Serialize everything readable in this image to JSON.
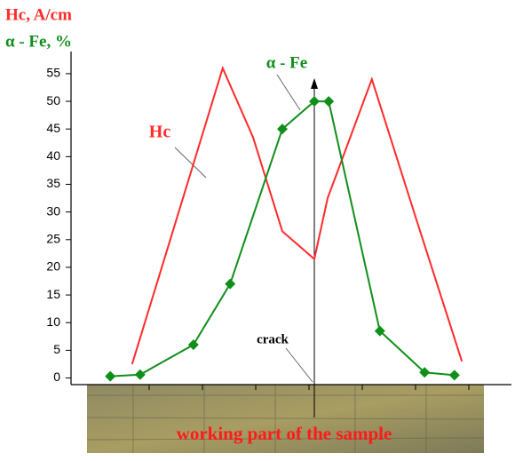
{
  "chart_data": {
    "type": "line",
    "ylabel_lines": [
      "Hc, A/cm",
      "α - Fe, %"
    ],
    "series": [
      {
        "name": "Hc",
        "color": "#ff2a2a",
        "marker": "none",
        "x": [
          0.68,
          1.38,
          2.38,
          2.95,
          3.5,
          4.1,
          4.35,
          5.18,
          6.02,
          6.87
        ],
        "values": [
          2.5,
          24.5,
          56,
          43.5,
          26.5,
          21.5,
          32.5,
          54,
          28.5,
          3
        ]
      },
      {
        "name": "α - Fe",
        "color": "#0f8f1a",
        "marker": "diamond",
        "x": [
          0.27,
          0.83,
          1.83,
          2.52,
          3.5,
          4.1,
          4.37,
          5.33,
          6.17,
          6.73
        ],
        "values": [
          0.3,
          0.6,
          6,
          17,
          45,
          50,
          50,
          8.5,
          1,
          0.5
        ]
      }
    ],
    "xlim": [
      -0.5,
      7.8
    ],
    "xticks": [
      1,
      2,
      3,
      4,
      5,
      6,
      7
    ],
    "ylim": [
      -1.2,
      59
    ],
    "yticks": [
      0,
      5,
      10,
      15,
      20,
      25,
      30,
      35,
      40,
      45,
      50,
      55
    ],
    "crack_label": "crack",
    "photo_label": "working part of the sample"
  }
}
